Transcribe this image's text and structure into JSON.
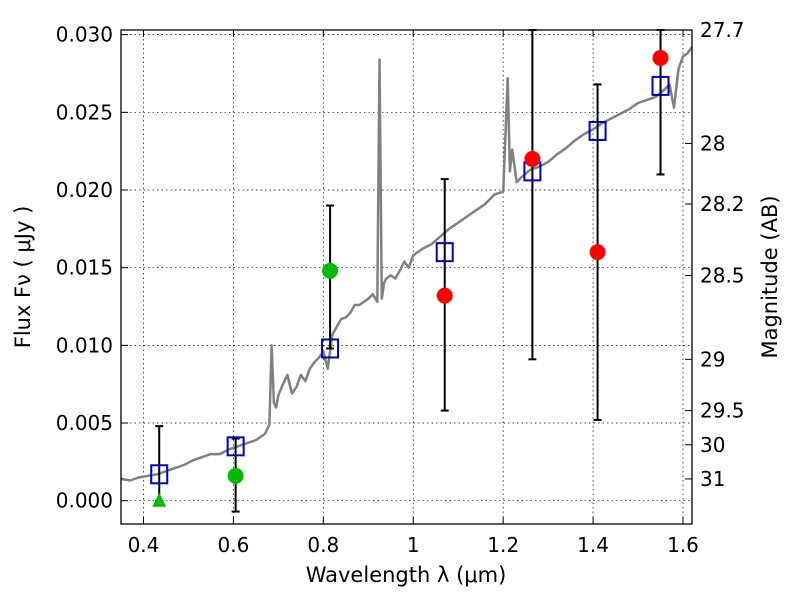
{
  "chart_data": {
    "type": "scatter",
    "title": "",
    "xlabel": "Wavelength  λ (μm)",
    "ylabel": "Flux  Fν  ( μJy )",
    "ylabel_right": "Magnitude (AB)",
    "xlim": [
      0.35,
      1.62
    ],
    "ylim": [
      -0.0015,
      0.0303
    ],
    "grid": true,
    "x_ticks": [
      0.4,
      0.6,
      0.8,
      1.0,
      1.2,
      1.4,
      1.6
    ],
    "x_tick_labels": [
      "0.4",
      "0.6",
      "0.8",
      "1",
      "1.2",
      "1.4",
      "1.6"
    ],
    "y_ticks": [
      0.0,
      0.005,
      0.01,
      0.015,
      0.02,
      0.025,
      0.03
    ],
    "y_tick_labels": [
      "0.000",
      "0.005",
      "0.010",
      "0.015",
      "0.020",
      "0.025",
      "0.030"
    ],
    "right_ticks": [
      {
        "label": "27.7",
        "flux": 0.0303
      },
      {
        "label": "28",
        "flux": 0.023
      },
      {
        "label": "28.2",
        "flux": 0.0191
      },
      {
        "label": "28.5",
        "flux": 0.0145
      },
      {
        "label": "29",
        "flux": 0.0091
      },
      {
        "label": "29.5",
        "flux": 0.0058
      },
      {
        "label": "30",
        "flux": 0.0036
      },
      {
        "label": "31",
        "flux": 0.0014
      }
    ],
    "colors": {
      "spectrum": "#808080",
      "model": "#0000cc",
      "red": "#ff0000",
      "green": "#00bb00",
      "error": "#000000"
    },
    "series": [
      {
        "kind": "spectrum",
        "x": [
          0.35,
          0.37,
          0.39,
          0.41,
          0.43,
          0.45,
          0.47,
          0.49,
          0.51,
          0.53,
          0.55,
          0.57,
          0.59,
          0.61,
          0.63,
          0.65,
          0.67,
          0.68,
          0.685,
          0.69,
          0.695,
          0.7,
          0.71,
          0.72,
          0.73,
          0.74,
          0.75,
          0.76,
          0.77,
          0.78,
          0.79,
          0.8,
          0.81,
          0.82,
          0.83,
          0.84,
          0.85,
          0.86,
          0.87,
          0.88,
          0.89,
          0.9,
          0.91,
          0.92,
          0.925,
          0.93,
          0.935,
          0.94,
          0.95,
          0.96,
          0.97,
          0.98,
          0.99,
          1.0,
          1.02,
          1.04,
          1.06,
          1.08,
          1.1,
          1.12,
          1.14,
          1.16,
          1.18,
          1.2,
          1.21,
          1.215,
          1.22,
          1.23,
          1.24,
          1.26,
          1.28,
          1.3,
          1.32,
          1.34,
          1.36,
          1.38,
          1.4,
          1.42,
          1.44,
          1.46,
          1.48,
          1.5,
          1.52,
          1.54,
          1.56,
          1.57,
          1.58,
          1.59,
          1.6,
          1.61,
          1.62
        ],
        "y": [
          0.0014,
          0.0013,
          0.0015,
          0.0016,
          0.0017,
          0.0019,
          0.0021,
          0.0023,
          0.0026,
          0.0028,
          0.003,
          0.003,
          0.0033,
          0.0035,
          0.0037,
          0.0039,
          0.0043,
          0.0049,
          0.01,
          0.0063,
          0.006,
          0.0068,
          0.0075,
          0.0081,
          0.0069,
          0.0073,
          0.0081,
          0.0077,
          0.0085,
          0.0089,
          0.0092,
          0.0096,
          0.0085,
          0.0107,
          0.0112,
          0.0117,
          0.0118,
          0.0121,
          0.0126,
          0.0126,
          0.0128,
          0.013,
          0.0133,
          0.0128,
          0.0284,
          0.013,
          0.014,
          0.0143,
          0.0145,
          0.0143,
          0.0148,
          0.0154,
          0.015,
          0.0158,
          0.0162,
          0.0165,
          0.017,
          0.0175,
          0.0179,
          0.0183,
          0.0187,
          0.0191,
          0.0197,
          0.0199,
          0.0272,
          0.0212,
          0.0226,
          0.0205,
          0.0208,
          0.0213,
          0.0215,
          0.0218,
          0.0223,
          0.0227,
          0.0232,
          0.0236,
          0.0239,
          0.0243,
          0.0246,
          0.0249,
          0.0252,
          0.0256,
          0.0258,
          0.026,
          0.0265,
          0.0268,
          0.0253,
          0.0278,
          0.0286,
          0.0288,
          0.0292
        ]
      },
      {
        "kind": "model",
        "marker": "open-square",
        "x": [
          0.435,
          0.605,
          0.815,
          1.07,
          1.265,
          1.41,
          1.55
        ],
        "y": [
          0.0017,
          0.0035,
          0.0098,
          0.016,
          0.0212,
          0.0238,
          0.0267
        ]
      },
      {
        "kind": "observed-red",
        "marker": "filled-circle",
        "x": [
          1.07,
          1.265,
          1.41,
          1.55
        ],
        "y": [
          0.0132,
          0.022,
          0.016,
          0.0285
        ],
        "err_low": [
          0.0058,
          0.0091,
          0.0052,
          0.021
        ],
        "err_high": [
          0.0207,
          0.0303,
          0.0268,
          0.0303
        ]
      },
      {
        "kind": "observed-green",
        "marker": "filled-circle",
        "x": [
          0.605,
          0.815
        ],
        "y": [
          0.0016,
          0.0148
        ],
        "err_low": [
          -0.0007,
          0.0098
        ],
        "err_high": [
          0.004,
          0.019
        ]
      },
      {
        "kind": "upper-limit",
        "marker": "triangle",
        "x": [
          0.435
        ],
        "y": [
          0.0
        ],
        "err_low": [
          0.0
        ],
        "err_high": [
          0.0048
        ]
      }
    ]
  }
}
